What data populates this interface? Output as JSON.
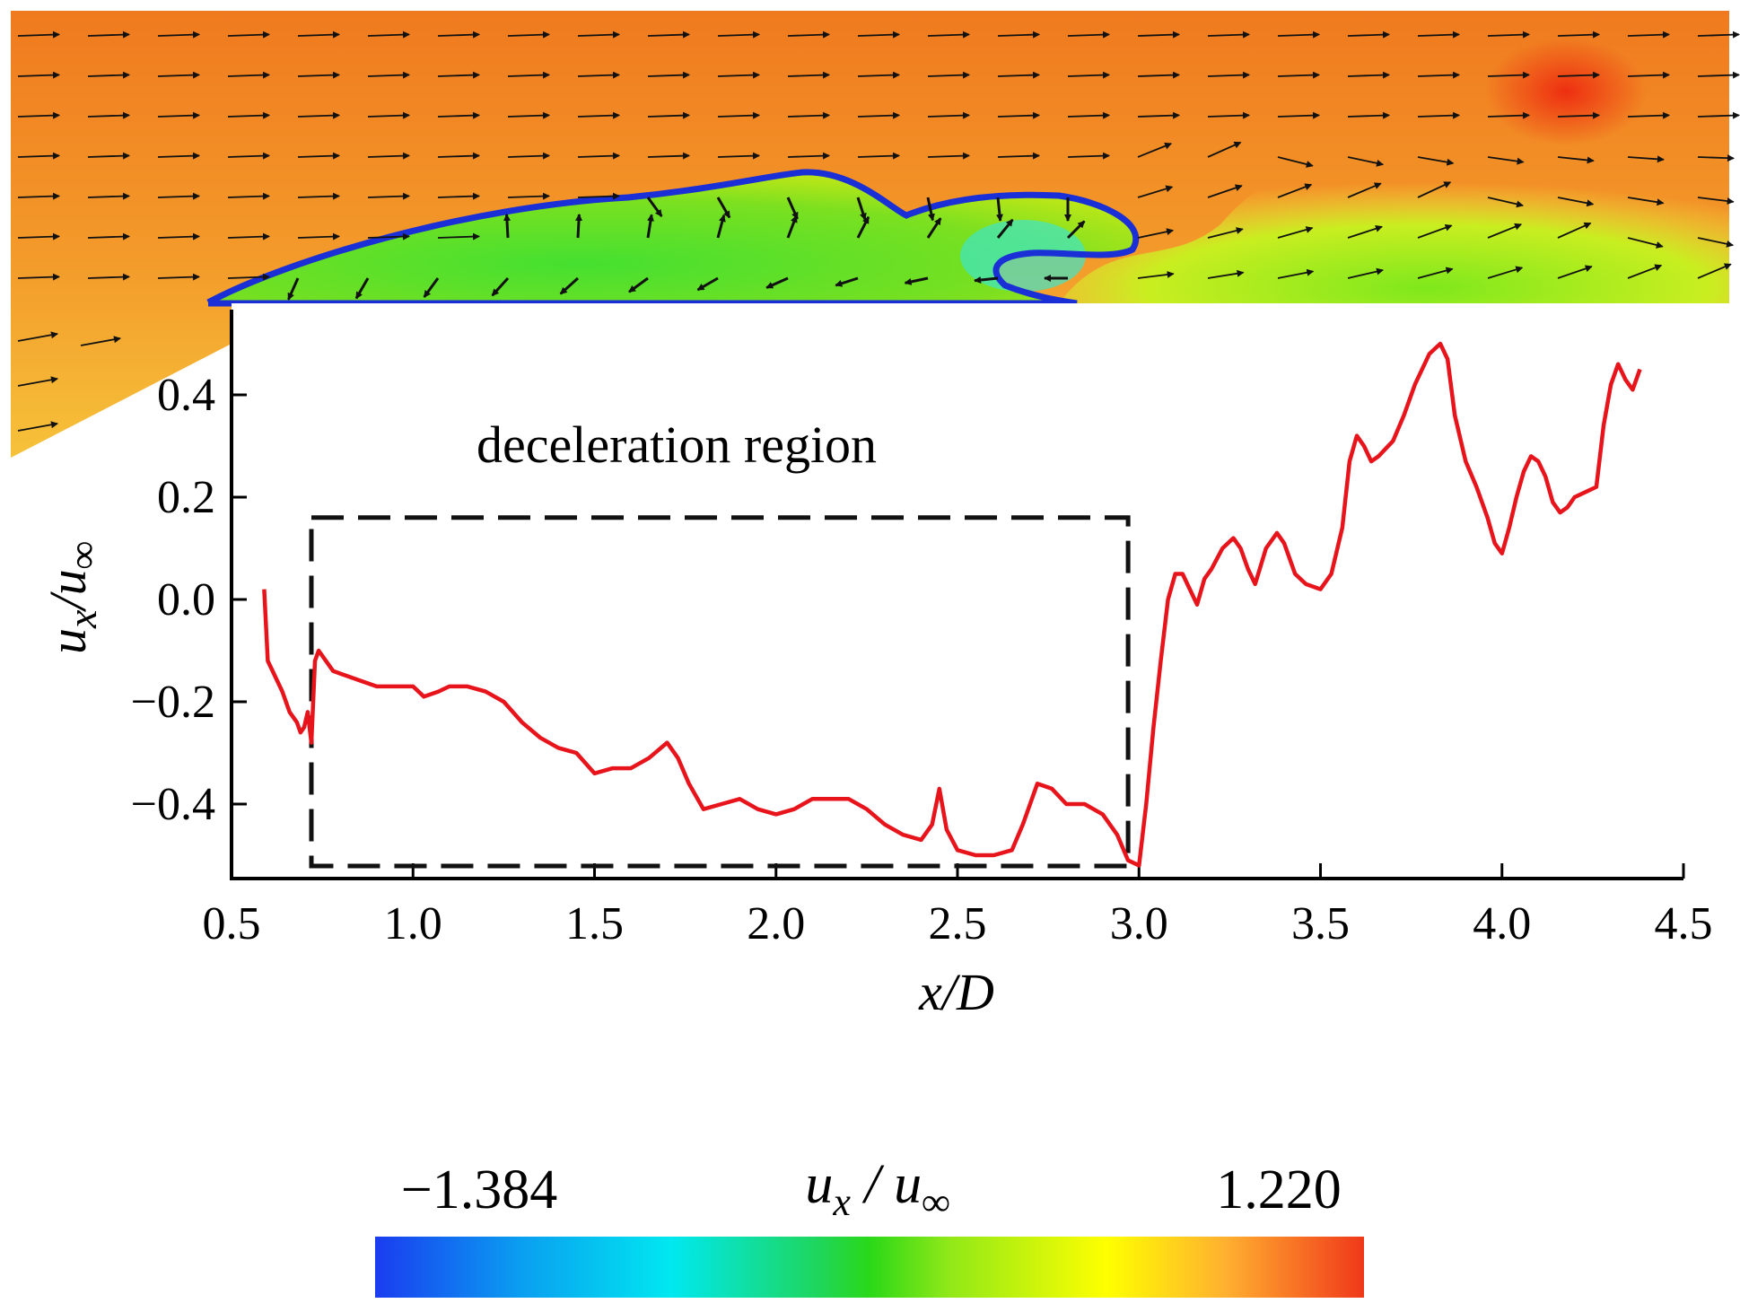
{
  "colors": {
    "series_line": "#e8141c",
    "separation_contour": "#1a2fd6",
    "decel_box": "#111111",
    "colormap": [
      "#1a3cf0",
      "#00e6f0",
      "#1fd65a",
      "#2ee81a",
      "#ffff00",
      "#ffad33",
      "#f04a1a"
    ]
  },
  "chart_data": [
    {
      "type": "line",
      "xlabel": "x/D",
      "ylabel": "u_x/u_∞",
      "ylabel_main": "u",
      "ylabel_sub": "x",
      "ylabel_slash": "/u",
      "ylabel_inf": "∞",
      "xlim": [
        0.5,
        4.5
      ],
      "ylim": [
        -0.54,
        0.52
      ],
      "grid": false,
      "x_ticks": [
        {
          "value": 0.5,
          "label": "0.5"
        },
        {
          "value": 1.0,
          "label": "1.0"
        },
        {
          "value": 1.5,
          "label": "1.5"
        },
        {
          "value": 2.0,
          "label": "2.0"
        },
        {
          "value": 2.5,
          "label": "2.5"
        },
        {
          "value": 3.0,
          "label": "3.0"
        },
        {
          "value": 3.5,
          "label": "3.5"
        },
        {
          "value": 4.0,
          "label": "4.0"
        },
        {
          "value": 4.5,
          "label": "4.5"
        }
      ],
      "y_ticks": [
        {
          "value": -0.4,
          "label": "−0.4"
        },
        {
          "value": -0.2,
          "label": "−0.2"
        },
        {
          "value": 0.0,
          "label": "0.0"
        },
        {
          "value": 0.2,
          "label": "0.2"
        },
        {
          "value": 0.4,
          "label": "0.4"
        }
      ],
      "annotations": [
        {
          "text": "deceleration region",
          "x_range": [
            0.72,
            2.97
          ],
          "y_top": 0.16
        }
      ],
      "series": [
        {
          "x": [
            0.59,
            0.6,
            0.62,
            0.64,
            0.66,
            0.68,
            0.69,
            0.7,
            0.71,
            0.72,
            0.73,
            0.74,
            0.76,
            0.78,
            0.82,
            0.86,
            0.9,
            0.95,
            1.0,
            1.03,
            1.07,
            1.1,
            1.15,
            1.2,
            1.25,
            1.3,
            1.35,
            1.4,
            1.45,
            1.5,
            1.55,
            1.6,
            1.65,
            1.7,
            1.73,
            1.76,
            1.8,
            1.85,
            1.9,
            1.95,
            2.0,
            2.05,
            2.1,
            2.15,
            2.2,
            2.25,
            2.3,
            2.35,
            2.4,
            2.43,
            2.45,
            2.47,
            2.5,
            2.55,
            2.6,
            2.65,
            2.68,
            2.72,
            2.76,
            2.8,
            2.85,
            2.9,
            2.94,
            2.97,
            3.0,
            3.02,
            3.04,
            3.06,
            3.08,
            3.1,
            3.12,
            3.14,
            3.16,
            3.18,
            3.2,
            3.23,
            3.26,
            3.28,
            3.3,
            3.32,
            3.35,
            3.38,
            3.4,
            3.43,
            3.46,
            3.5,
            3.53,
            3.56,
            3.58,
            3.6,
            3.62,
            3.64,
            3.66,
            3.7,
            3.73,
            3.76,
            3.8,
            3.83,
            3.85,
            3.87,
            3.9,
            3.93,
            3.96,
            3.98,
            4.0,
            4.02,
            4.04,
            4.06,
            4.08,
            4.1,
            4.12,
            4.14,
            4.16,
            4.18,
            4.2,
            4.23,
            4.26,
            4.28,
            4.3,
            4.32,
            4.34,
            4.36,
            4.38
          ],
          "y": [
            0.02,
            -0.12,
            -0.15,
            -0.18,
            -0.22,
            -0.24,
            -0.26,
            -0.25,
            -0.22,
            -0.28,
            -0.12,
            -0.1,
            -0.12,
            -0.14,
            -0.15,
            -0.16,
            -0.17,
            -0.17,
            -0.17,
            -0.19,
            -0.18,
            -0.17,
            -0.17,
            -0.18,
            -0.2,
            -0.24,
            -0.27,
            -0.29,
            -0.3,
            -0.34,
            -0.33,
            -0.33,
            -0.31,
            -0.28,
            -0.31,
            -0.36,
            -0.41,
            -0.4,
            -0.39,
            -0.41,
            -0.42,
            -0.41,
            -0.39,
            -0.39,
            -0.39,
            -0.41,
            -0.44,
            -0.46,
            -0.47,
            -0.44,
            -0.37,
            -0.45,
            -0.49,
            -0.5,
            -0.5,
            -0.49,
            -0.44,
            -0.36,
            -0.37,
            -0.4,
            -0.4,
            -0.42,
            -0.46,
            -0.51,
            -0.52,
            -0.4,
            -0.25,
            -0.12,
            0.0,
            0.05,
            0.05,
            0.02,
            -0.01,
            0.04,
            0.06,
            0.1,
            0.12,
            0.1,
            0.06,
            0.03,
            0.1,
            0.13,
            0.11,
            0.05,
            0.03,
            0.02,
            0.05,
            0.14,
            0.27,
            0.32,
            0.3,
            0.27,
            0.28,
            0.31,
            0.36,
            0.42,
            0.48,
            0.5,
            0.47,
            0.36,
            0.27,
            0.22,
            0.16,
            0.11,
            0.09,
            0.14,
            0.2,
            0.25,
            0.28,
            0.27,
            0.24,
            0.19,
            0.17,
            0.18,
            0.2,
            0.21,
            0.22,
            0.34,
            0.42,
            0.46,
            0.43,
            0.41,
            0.45
          ]
        }
      ]
    },
    {
      "type": "heatmap",
      "description_field": "u_x / u_∞",
      "colorbar_title_main": "u",
      "colorbar_title_sub": "x",
      "colorbar_title_slash": " / u",
      "colorbar_title_inf": "∞",
      "colorbar_min": -1.384,
      "colorbar_min_label": "−1.384",
      "colorbar_max": 1.22,
      "colorbar_max_label": "1.220"
    }
  ]
}
